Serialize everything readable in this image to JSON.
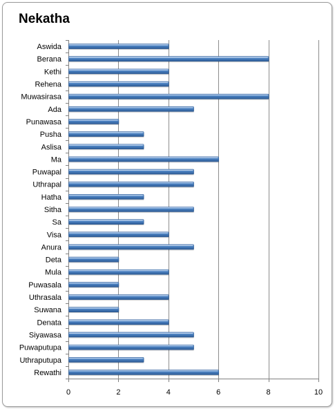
{
  "chart_data": {
    "type": "bar",
    "orientation": "horizontal",
    "title": "Nekatha",
    "xlabel": "",
    "ylabel": "",
    "xlim": [
      0,
      10
    ],
    "xticks": [
      0,
      2,
      4,
      6,
      8,
      10
    ],
    "grid": true,
    "legend": "none",
    "categories": [
      "Aswida",
      "Berana",
      "Kethi",
      "Rehena",
      "Muwasirasa",
      "Ada",
      "Punawasa",
      "Pusha",
      "Aslisa",
      "Ma",
      "Puwapal",
      "Uthrapal",
      "Hatha",
      "Sitha",
      "Sa",
      "Visa",
      "Anura",
      "Deta",
      "Mula",
      "Puwasala",
      "Uthrasala",
      "Suwana",
      "Denata",
      "Siyawasa",
      "Puwaputupa",
      "Uthraputupa",
      "Rewathi"
    ],
    "values": [
      4,
      8,
      4,
      4,
      8,
      5,
      2,
      3,
      3,
      6,
      5,
      5,
      3,
      5,
      3,
      4,
      5,
      2,
      4,
      2,
      4,
      2,
      4,
      5,
      5,
      3,
      6
    ],
    "colors": {
      "bar_light": "#6f9fd8",
      "bar_mid": "#4a7ebb",
      "bar_dark": "#2c5a94",
      "grid": "#8c8c8c",
      "axis": "#808080"
    }
  }
}
